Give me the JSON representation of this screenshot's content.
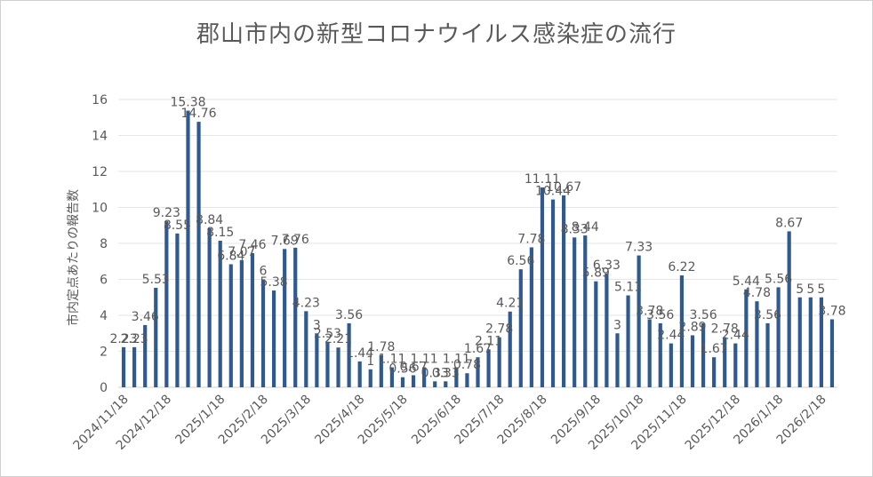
{
  "chart_data": {
    "type": "bar",
    "title": "郡山市内の新型コロナウイルス感染症の流行",
    "ylabel": "市内定点あたりの報告数",
    "xlabel": "",
    "ylim": [
      0,
      16
    ],
    "yticks": [
      0,
      2,
      4,
      6,
      8,
      10,
      12,
      14,
      16
    ],
    "grid": true,
    "legend": "none",
    "bar_color": "#2e5a8f",
    "xtick_labels": [
      "2024/11/18",
      "2024/12/18",
      "2025/1/18",
      "2025/2/18",
      "2025/3/18",
      "2025/4/18",
      "2025/5/18",
      "2025/6/18",
      "2025/7/18",
      "2025/8/18",
      "2025/9/18",
      "2025/10/18",
      "2025/11/18",
      "2025/12/18",
      "2026/1/18",
      "2026/2/18"
    ],
    "xtick_bar_index": [
      0,
      4,
      9,
      13,
      17,
      22,
      26,
      31,
      35,
      39,
      44,
      48,
      52,
      57,
      61,
      65
    ],
    "values": [
      2.23,
      2.23,
      3.46,
      5.53,
      9.23,
      8.55,
      15.38,
      14.76,
      8.84,
      8.15,
      6.84,
      7.07,
      7.46,
      6,
      5.38,
      7.69,
      7.76,
      4.23,
      3,
      2.53,
      2.21,
      3.56,
      1.44,
      1,
      1.78,
      1.11,
      0.56,
      0.67,
      1.11,
      0.33,
      0.33,
      1.11,
      0.78,
      1.67,
      2.11,
      2.78,
      4.21,
      6.56,
      7.78,
      11.11,
      10.44,
      10.67,
      8.33,
      8.44,
      5.89,
      6.33,
      3,
      5.11,
      7.33,
      3.78,
      3.56,
      2.44,
      6.22,
      2.89,
      3.56,
      1.67,
      2.78,
      2.44,
      5.44,
      4.78,
      3.56,
      5.56,
      8.67,
      5,
      5,
      5,
      3.78
    ],
    "data_labels": [
      "2.23",
      "2.23",
      "3.46",
      "5.53",
      "9.23",
      "8.55",
      "15.38",
      "14.76",
      "8.84",
      "8.15",
      "6.84",
      "7.07",
      "7.46",
      "6",
      "5.38",
      "7.69",
      "7.76",
      "4.23",
      "3",
      "2.53",
      "2.21",
      "3.56",
      "1.44",
      "1",
      "1.78",
      "1.11",
      "0.56",
      "0.67",
      "1.11",
      "0.33",
      "0.33",
      "1.11",
      "0.78",
      "1.67",
      "2.11",
      "2.78",
      "4.21",
      "6.56",
      "7.78",
      "11.11",
      "10.44",
      "10.67",
      "8.33",
      "8.44",
      "5.89",
      "6.33",
      "3",
      "5.11",
      "7.33",
      "3.78",
      "3.56",
      "2.44",
      "6.22",
      "2.89",
      "3.56",
      "1.67",
      "2.78",
      "2.44",
      "5.44",
      "4.78",
      "3.56",
      "5.56",
      "8.67",
      "5",
      "5",
      "5",
      "3.78"
    ]
  }
}
